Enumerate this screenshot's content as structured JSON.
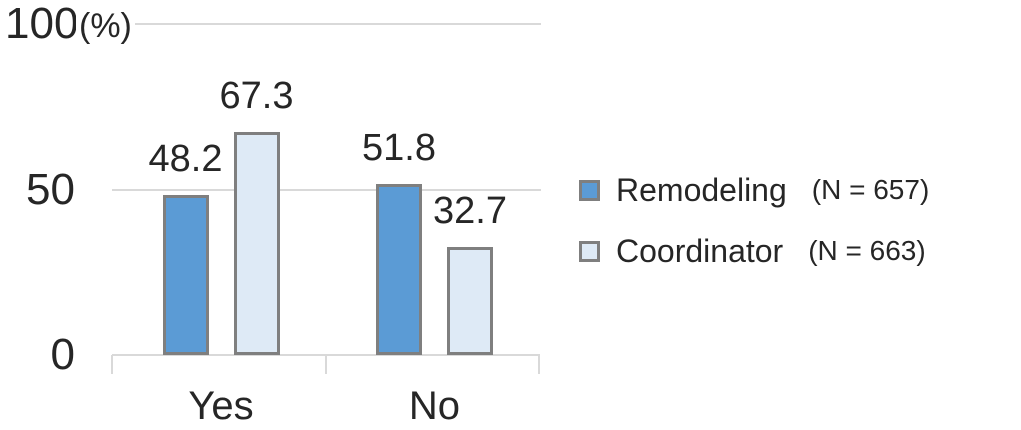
{
  "chart_data": {
    "type": "bar",
    "categories": [
      "Yes",
      "No"
    ],
    "series": [
      {
        "name": "Remodeling",
        "n_label": "(N = 657)",
        "color": "#5b9bd5",
        "values": [
          48.2,
          51.8
        ]
      },
      {
        "name": "Coordinator",
        "n_label": "(N = 663)",
        "color": "#deeaf6",
        "values": [
          67.3,
          32.7
        ]
      }
    ],
    "unit_label": "(%)",
    "yticks": [
      0,
      50,
      100
    ],
    "ylim": [
      0,
      100
    ],
    "grid": "horizontal",
    "legend_position": "right",
    "colors": {
      "bar_border": "#7f7f7f",
      "axis": "#d9d9d9",
      "text": "#262626",
      "background": "#ffffff"
    }
  }
}
